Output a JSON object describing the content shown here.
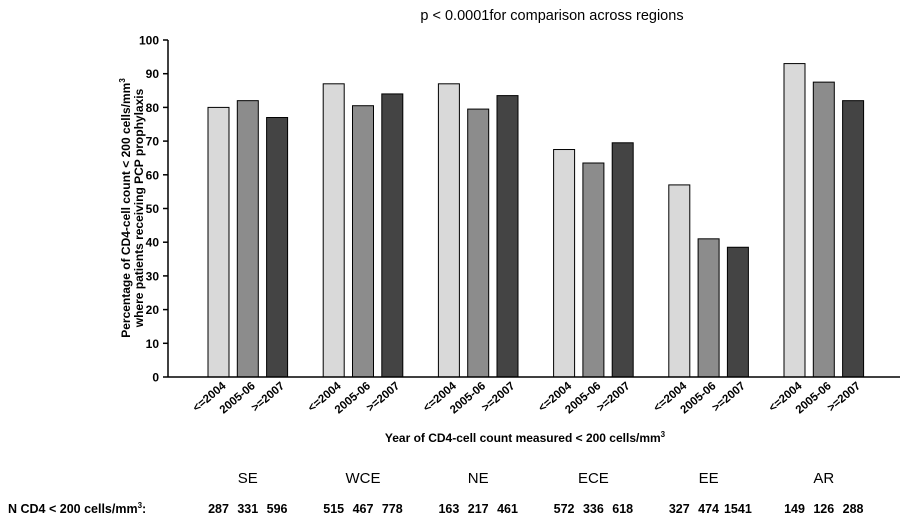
{
  "chart_data": {
    "type": "bar",
    "title": "p < 0.0001for comparison across regions",
    "ylabel_line1": "Percentage of CD4-cell count < 200 cells/mm",
    "ylabel_sup": "3",
    "ylabel_line2": "where patients receiving PCP prophylaxis",
    "xlabel": "Year of CD4-cell count measured < 200 cells/mm",
    "xlabel_sup": "3",
    "ylim": [
      0,
      100
    ],
    "yticks": [
      0,
      10,
      20,
      30,
      40,
      50,
      60,
      70,
      80,
      90,
      100
    ],
    "subcategories": [
      "<=2004",
      "2005-06",
      ">=2007"
    ],
    "colors": [
      "#d9d9d9",
      "#8c8c8c",
      "#444444"
    ],
    "groups": [
      {
        "region": "SE",
        "values": [
          80,
          82,
          77
        ],
        "n": [
          "287",
          "331",
          "596"
        ]
      },
      {
        "region": "WCE",
        "values": [
          87,
          80.5,
          84
        ],
        "n": [
          "515",
          "467",
          "778"
        ]
      },
      {
        "region": "NE",
        "values": [
          87,
          79.5,
          83.5
        ],
        "n": [
          "163",
          "217",
          "461"
        ]
      },
      {
        "region": "ECE",
        "values": [
          67.5,
          63.5,
          69.5
        ],
        "n": [
          "572",
          "336",
          "618"
        ]
      },
      {
        "region": "EE",
        "values": [
          57,
          41,
          38.5
        ],
        "n": [
          "327",
          "474",
          "1541"
        ]
      },
      {
        "region": "AR",
        "values": [
          93,
          87.5,
          82
        ],
        "n": [
          "149",
          "126",
          "288"
        ]
      }
    ],
    "n_label": "N CD4 < 200 cells/mm",
    "n_label_sup": "3",
    "n_label_suffix": ":"
  }
}
